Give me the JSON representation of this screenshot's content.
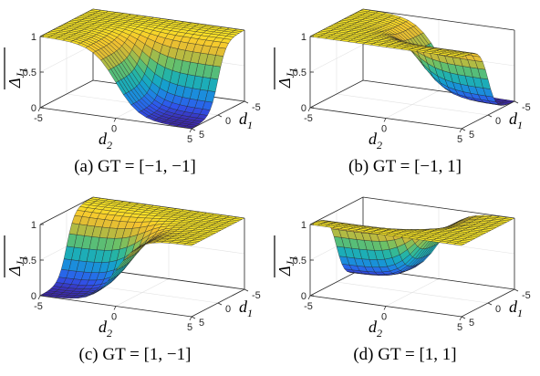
{
  "chart_data": [
    {
      "type": "surface",
      "caption": "(a) GT = [−1, −1]",
      "gt": [
        -1,
        -1
      ],
      "xlabel": "d",
      "xlabel_sub": "2",
      "ylabel": "d",
      "ylabel_sub": "1",
      "zlabel": "Δ",
      "zlabel_sub": "J",
      "zlabel_subsub": "1",
      "xlim": [
        -5,
        5
      ],
      "ylim": [
        -5,
        5
      ],
      "zlim": [
        0,
        1
      ],
      "xticks": [
        "-5",
        "0",
        "5"
      ],
      "yticks": [
        "-5",
        "0",
        "5"
      ],
      "zticks": [
        "0",
        "0.5",
        "1"
      ],
      "grid": true
    },
    {
      "type": "surface",
      "caption": "(b) GT = [−1, 1]",
      "gt": [
        -1,
        1
      ],
      "xlabel": "d",
      "xlabel_sub": "2",
      "ylabel": "d",
      "ylabel_sub": "1",
      "zlabel": "Δ",
      "zlabel_sub": "J",
      "zlabel_subsub": "1",
      "xlim": [
        -5,
        5
      ],
      "ylim": [
        -5,
        5
      ],
      "zlim": [
        0,
        1
      ],
      "xticks": [
        "-5",
        "0",
        "5"
      ],
      "yticks": [
        "-5",
        "0",
        "5"
      ],
      "zticks": [
        "0",
        "0.5",
        "1"
      ],
      "grid": true
    },
    {
      "type": "surface",
      "caption": "(c) GT = [1, −1]",
      "gt": [
        1,
        -1
      ],
      "xlabel": "d",
      "xlabel_sub": "2",
      "ylabel": "d",
      "ylabel_sub": "1",
      "zlabel": "Δ",
      "zlabel_sub": "J",
      "zlabel_subsub": "1",
      "xlim": [
        -5,
        5
      ],
      "ylim": [
        -5,
        5
      ],
      "zlim": [
        0,
        1
      ],
      "xticks": [
        "-5",
        "0",
        "5"
      ],
      "yticks": [
        "-5",
        "0",
        "5"
      ],
      "zticks": [
        "0",
        "0.5",
        "1"
      ],
      "grid": true
    },
    {
      "type": "surface",
      "caption": "(d) GT = [1, 1]",
      "gt": [
        1,
        1
      ],
      "xlabel": "d",
      "xlabel_sub": "2",
      "ylabel": "d",
      "ylabel_sub": "1",
      "zlabel": "Δ",
      "zlabel_sub": "J",
      "zlabel_subsub": "1",
      "xlim": [
        -5,
        5
      ],
      "ylim": [
        -5,
        5
      ],
      "zlim": [
        0,
        1
      ],
      "xticks": [
        "-5",
        "0",
        "5"
      ],
      "yticks": [
        "-5",
        "0",
        "5"
      ],
      "zticks": [
        "0",
        "0.5",
        "1"
      ],
      "grid": true
    }
  ],
  "colormap": [
    "#3e26a8",
    "#2f55ed",
    "#1d84e3",
    "#14a6c8",
    "#29b79f",
    "#6fc164",
    "#c3b93b",
    "#f4c12f",
    "#f9e725"
  ]
}
